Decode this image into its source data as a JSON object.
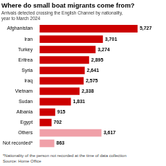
{
  "chart_data": {
    "type": "bar",
    "title": "Where do small boat migrants come from?",
    "subtitle": "Arrivals detected crossing the English Channel by nationality,\nyear to March 2024",
    "annotations": [
      "*Nationality of the person not recorded at the time of data collection",
      "Source: Home Office"
    ],
    "categories": [
      "Afghanistan",
      "Iran",
      "Turkey",
      "Eritrea",
      "Syria",
      "Iraq",
      "Vietnam",
      "Sudan",
      "Albania",
      "Egypt",
      "Others",
      "Not recorded*"
    ],
    "values": [
      5727,
      3701,
      3274,
      2895,
      2641,
      2575,
      2338,
      1831,
      915,
      702,
      3617,
      863
    ],
    "value_labels": [
      "5,727",
      "3,701",
      "3,274",
      "2,895",
      "2,641",
      "2,575",
      "2,338",
      "1,831",
      "915",
      "702",
      "3,617",
      "863"
    ],
    "colors": [
      "#cc0000",
      "#cc0000",
      "#cc0000",
      "#cc0000",
      "#cc0000",
      "#cc0000",
      "#cc0000",
      "#cc0000",
      "#cc0000",
      "#cc0000",
      "#f0a0a8",
      "#f0a0a8"
    ],
    "xlim": [
      0,
      6500
    ],
    "orientation": "horizontal",
    "data_labels": true,
    "tick_labels": "y",
    "grid": false
  }
}
